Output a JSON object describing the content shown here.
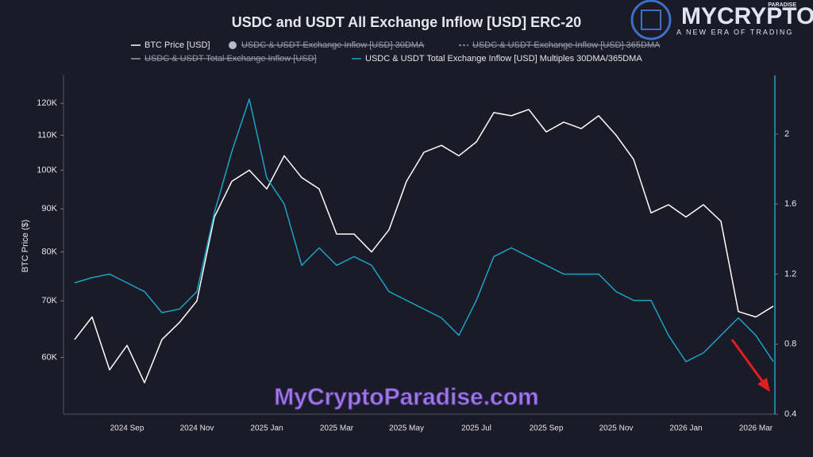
{
  "chart_data": {
    "type": "line",
    "title": "USDC and USDT All Exchange Inflow [USD] ERC-20",
    "y_label": "BTC Price ($)",
    "categories": [
      null,
      null,
      null,
      "2024 Sep",
      null,
      null,
      null,
      "2024 Nov",
      null,
      null,
      null,
      "2025 Jan",
      null,
      null,
      null,
      "2025 Mar",
      null,
      null,
      null,
      "2025 May",
      null,
      null,
      null,
      "2025 Jul",
      null,
      null,
      null,
      "2025 Sep",
      null,
      null,
      null,
      "2025 Nov",
      null,
      null,
      null,
      "2026 Jan",
      null,
      null,
      null,
      "2026 Mar",
      null
    ],
    "series": [
      {
        "name": "BTC Price [USD]",
        "color": "#ffffff",
        "visible": true,
        "values": [
          63000,
          67000,
          58000,
          62000,
          56000,
          63000,
          66000,
          70000,
          88000,
          97000,
          100000,
          95000,
          104000,
          98000,
          95000,
          84000,
          84000,
          80000,
          85000,
          97000,
          105000,
          107000,
          104000,
          108000,
          117000,
          116000,
          118000,
          111000,
          114000,
          112000,
          116000,
          110000,
          103000,
          89000,
          91000,
          88000,
          91000,
          87000,
          68000,
          67000,
          69000
        ]
      },
      {
        "name": "USDC & USDT Exchange Inflow [USD] 30DMA",
        "color": "#b8b8c8",
        "visible": false
      },
      {
        "name": "USDC & USDT Exchange Inflow [USD] 365DMA",
        "color": "#b8b8c8",
        "visible": false
      },
      {
        "name": "USDC & USDT Total Exchange Inflow [USD]",
        "color": "#b8b8c8",
        "visible": false
      },
      {
        "name": "USDC & USDT Total Exchange Inflow [USD] Multiples 30DMA/365DMA",
        "color": "#1aa3c8",
        "visible": true,
        "axis": "y2",
        "values": [
          1.15,
          1.18,
          1.2,
          1.15,
          1.1,
          0.98,
          1.0,
          1.1,
          1.55,
          1.9,
          2.2,
          1.75,
          1.6,
          1.25,
          1.35,
          1.25,
          1.3,
          1.25,
          1.1,
          1.05,
          1.0,
          0.95,
          0.85,
          1.05,
          1.3,
          1.35,
          1.3,
          1.25,
          1.2,
          1.2,
          1.2,
          1.1,
          1.05,
          1.05,
          0.85,
          0.7,
          0.75,
          0.85,
          0.95,
          0.85,
          0.7
        ]
      }
    ],
    "y_scale": "log",
    "ylim": [
      51400,
      129500
    ],
    "yticks": [
      {
        "value": 60000,
        "label": "60K"
      },
      {
        "value": 70000,
        "label": "70K"
      },
      {
        "value": 80000,
        "label": "80K"
      },
      {
        "value": 90000,
        "label": "90K"
      },
      {
        "value": 100000,
        "label": "100K"
      },
      {
        "value": 110000,
        "label": "110K"
      },
      {
        "value": 120000,
        "label": "120K"
      }
    ],
    "y2lim": [
      0.4,
      2.335
    ],
    "y2ticks": [
      0.4,
      0.8,
      1.2,
      1.6,
      2
    ],
    "grid": false,
    "legend": "top"
  },
  "branding": {
    "logo": "MYCRYPTO",
    "logo_tag": "PARADISE",
    "slogan": "A NEW ERA OF TRADING",
    "watermark": "MyCryptoParadise.com"
  }
}
